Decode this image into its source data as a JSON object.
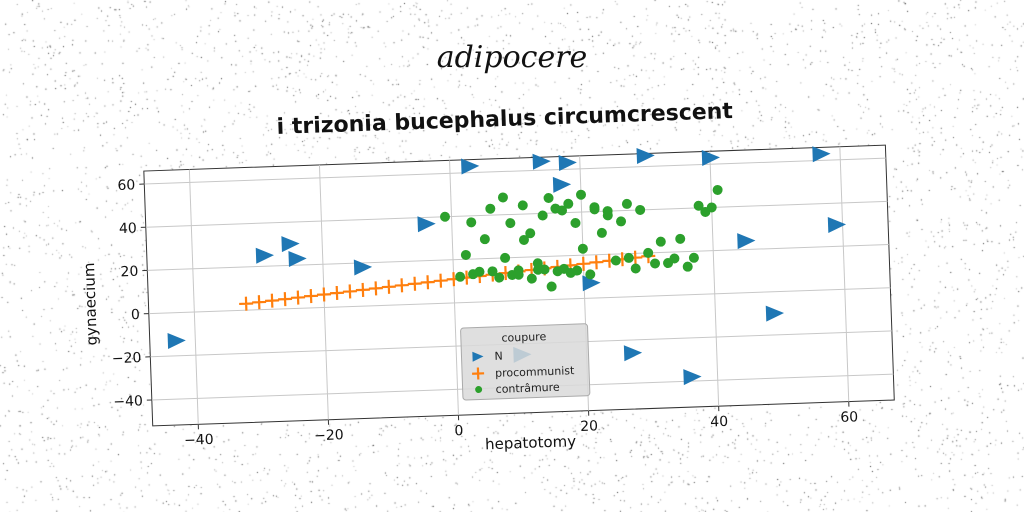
{
  "suptitle": "adipocere",
  "chart_data": {
    "type": "scatter",
    "title": "i trizonia bucephalus circumcrescent",
    "xlabel": "hepatotomy",
    "ylabel": "gynaecium",
    "xlim": [
      -47,
      67
    ],
    "ylim": [
      -52,
      66
    ],
    "xticks": [
      -40,
      -20,
      0,
      20,
      40,
      60
    ],
    "yticks": [
      -40,
      -20,
      0,
      20,
      40,
      60
    ],
    "xtick_labels": [
      "−40",
      "−20",
      "0",
      "20",
      "40",
      "60"
    ],
    "ytick_labels": [
      "−40",
      "−20",
      "0",
      "20",
      "40",
      "60"
    ],
    "grid": true,
    "legend": {
      "title": "coupure",
      "position": "lower-center"
    },
    "series": [
      {
        "name": "N",
        "marker": "triangle-right",
        "color": "#1f77b4",
        "x": [
          3,
          14,
          18,
          30,
          40,
          57,
          17,
          -4,
          -29,
          -25,
          -24,
          -14,
          45,
          59,
          21,
          49,
          -43,
          27,
          36,
          10
        ],
        "y": [
          63,
          64,
          63,
          65,
          63,
          63,
          53,
          37,
          25,
          30,
          23,
          18,
          24,
          30,
          7,
          -10,
          -13,
          -26,
          -38,
          -25
        ]
      },
      {
        "name": "procommunist",
        "marker": "plus",
        "color": "#ff7f0e",
        "x": [
          -32,
          -30,
          -28,
          -26,
          -24,
          -22,
          -20,
          -18,
          -16,
          -14,
          -12,
          -10,
          -8,
          -6,
          -4,
          -2,
          0,
          2,
          4,
          6,
          8,
          10,
          12,
          14,
          16,
          18,
          20,
          22,
          24,
          26,
          28,
          30
        ],
        "y": [
          3,
          3.5,
          4,
          4.5,
          5,
          5.5,
          6,
          6.5,
          7,
          7.5,
          8,
          8.5,
          9,
          9.5,
          10,
          10.5,
          11,
          11.5,
          12,
          12.5,
          13,
          13.5,
          14,
          14.5,
          15,
          15.5,
          16,
          16.5,
          17,
          17.5,
          18,
          18.5
        ]
      },
      {
        "name": "contrâmure",
        "marker": "circle",
        "color": "#2ca02c",
        "x": [
          -1,
          3,
          6,
          8,
          11,
          14,
          16,
          18,
          20,
          22,
          24,
          27,
          29,
          32,
          35,
          39,
          40,
          41,
          2,
          5,
          9,
          12,
          15,
          17,
          19,
          23,
          26,
          30,
          34,
          37,
          1,
          4,
          7,
          10,
          13,
          16,
          20,
          25,
          28,
          33,
          36,
          9,
          12,
          15,
          21,
          24,
          6,
          18,
          31,
          14,
          3,
          11,
          8,
          17,
          22,
          27,
          38,
          13,
          19,
          10
        ],
        "y": [
          40,
          37,
          43,
          48,
          44,
          39,
          42,
          44,
          48,
          42,
          38,
          43,
          40,
          25,
          26,
          38,
          40,
          48,
          22,
          29,
          36,
          31,
          47,
          41,
          35,
          30,
          35,
          20,
          17,
          17,
          12,
          14,
          11,
          14,
          17,
          13,
          23,
          17,
          13,
          15,
          13,
          12,
          10,
          6,
          11,
          40,
          14,
          12,
          15,
          14,
          13,
          28,
          20,
          14,
          41,
          18,
          41,
          14,
          13,
          12
        ]
      }
    ]
  }
}
